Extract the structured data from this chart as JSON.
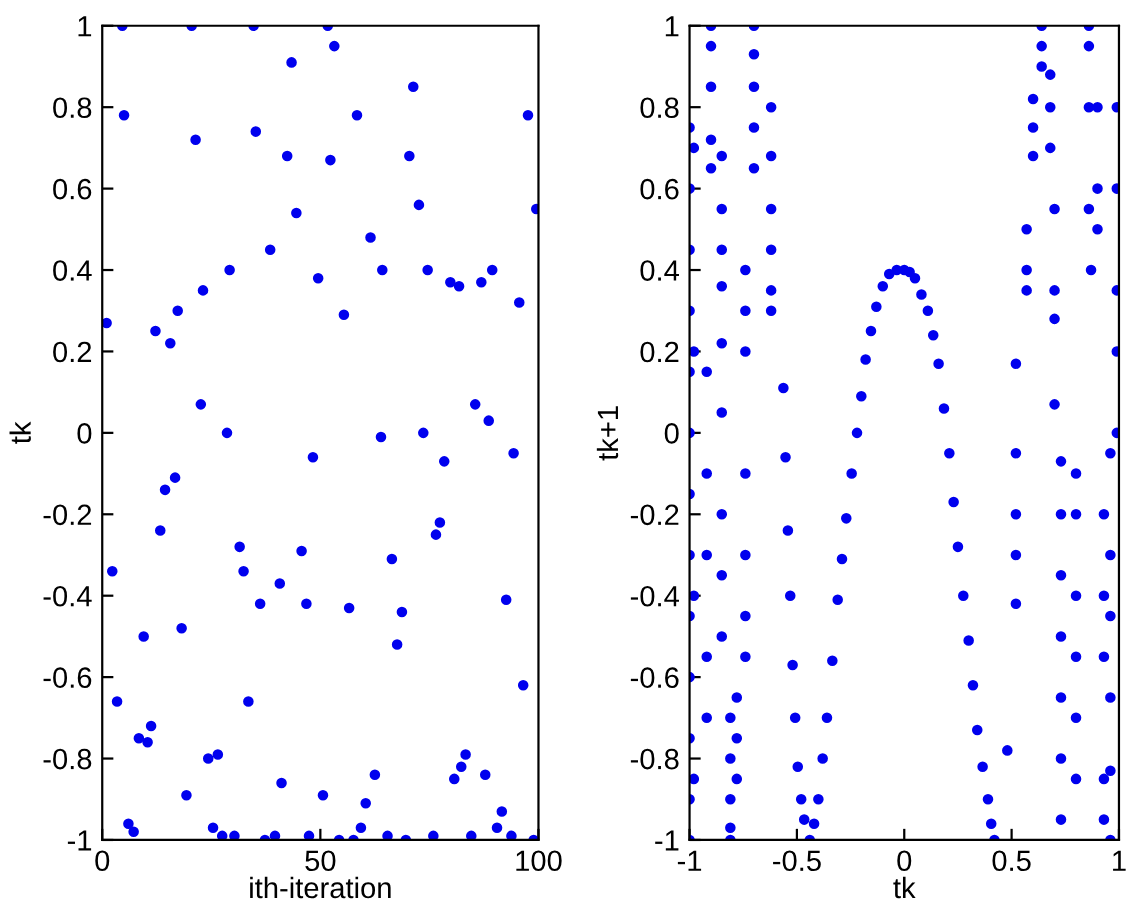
{
  "chart_data": [
    {
      "type": "scatter",
      "xlabel": "ith-iteration",
      "ylabel": "tk",
      "xlim": [
        0,
        100
      ],
      "ylim": [
        -1,
        1
      ],
      "xticks": [
        0,
        50,
        100
      ],
      "yticks": [
        -1,
        -0.8,
        -0.6,
        -0.4,
        -0.2,
        0,
        0.2,
        0.4,
        0.6,
        0.8,
        1
      ],
      "marker": "circle",
      "grid": false,
      "series": [
        {
          "color": "#0000ee",
          "x": [
            1,
            2.3,
            3.4,
            4.6,
            5,
            6,
            7.2,
            8.4,
            9.5,
            10.4,
            11.2,
            12.2,
            13.3,
            14.4,
            15.6,
            16.7,
            17.3,
            18.2,
            19.3,
            20.5,
            21.4,
            22.6,
            23.1,
            24.3,
            25.4,
            26.5,
            27.5,
            28.6,
            29.2,
            30.3,
            31.5,
            32.4,
            33.5,
            34.7,
            35.2,
            36.2,
            37.3,
            38.5,
            39.6,
            40.7,
            41.1,
            42.4,
            43.4,
            44.5,
            45.7,
            46.8,
            47.4,
            48.3,
            49.5,
            50.6,
            51.7,
            52.3,
            53.2,
            54.3,
            55.4,
            56.6,
            57.6,
            58.4,
            59.3,
            60.4,
            61.5,
            62.5,
            63.9,
            64.2,
            65.4,
            66.4,
            67.6,
            68.7,
            69.6,
            70.4,
            71.3,
            72.6,
            73.6,
            74.6,
            75.9,
            76.5,
            77.4,
            78.4,
            79.8,
            80.7,
            81.8,
            82.3,
            83.3,
            84.6,
            85.5,
            86.9,
            87.8,
            88.6,
            89.4,
            90.5,
            91.6,
            92.6,
            93.8,
            94.3,
            95.6,
            96.5,
            97.6,
            98.9,
            99.5
          ],
          "values": [
            0.27,
            -0.34,
            -0.66,
            1.0,
            0.78,
            -0.96,
            -0.98,
            -0.75,
            -0.5,
            -0.76,
            -0.72,
            0.25,
            -0.24,
            -0.14,
            0.22,
            -0.11,
            0.3,
            -0.48,
            -0.89,
            1.0,
            0.72,
            0.07,
            0.35,
            -0.8,
            -0.97,
            -0.79,
            -0.99,
            0.0,
            0.4,
            -0.99,
            -0.28,
            -0.34,
            -0.66,
            1.0,
            0.74,
            -0.42,
            -1.0,
            0.45,
            -0.99,
            -0.37,
            -0.86,
            0.68,
            0.91,
            0.54,
            -0.29,
            -0.42,
            -0.99,
            -0.06,
            0.38,
            -0.89,
            1.0,
            0.67,
            0.95,
            -1.0,
            0.29,
            -0.43,
            -1.0,
            0.78,
            -0.97,
            -0.91,
            0.48,
            -0.84,
            -0.01,
            0.4,
            -0.99,
            -0.31,
            -0.52,
            -0.44,
            -1.0,
            0.68,
            0.85,
            0.56,
            0.0,
            0.4,
            -0.99,
            -0.25,
            -0.22,
            -0.07,
            0.37,
            -0.85,
            0.36,
            -0.82,
            -0.79,
            -0.99,
            0.07,
            0.37,
            -0.84,
            0.03,
            0.4,
            -0.97,
            -0.93,
            -0.41,
            -0.99,
            -0.05,
            0.32,
            -0.62,
            0.78,
            -1.0,
            0.55
          ]
        }
      ]
    },
    {
      "type": "scatter",
      "xlabel": "tk",
      "ylabel": "tk+1",
      "xlim": [
        -1,
        1
      ],
      "ylim": [
        -1,
        1
      ],
      "xticks": [
        -1,
        -0.5,
        0,
        0.5,
        1
      ],
      "yticks": [
        -1,
        -0.8,
        -0.6,
        -0.4,
        -0.2,
        0,
        0.2,
        0.4,
        0.6,
        0.8,
        1
      ],
      "marker": "circle",
      "grid": false,
      "series": [
        {
          "color": "#0000ee",
          "x": [
            -0.553,
            -0.531,
            -0.508,
            -0.48,
            -0.42,
            -0.38,
            -0.335,
            -0.29,
            -0.245,
            -0.2,
            -0.155,
            -0.1,
            -0.035,
            0.025,
            0.08,
            0.135,
            0.185,
            0.23,
            0.275,
            0.32,
            0.365,
            0.405,
            -0.563,
            -0.542,
            -0.52,
            -0.496,
            -0.466,
            -0.44,
            -0.4,
            -0.36,
            -0.31,
            -0.27,
            -0.22,
            -0.18,
            -0.13,
            -0.07,
            0.0,
            0.05,
            0.11,
            0.16,
            0.21,
            0.25,
            0.3,
            0.34,
            0.39,
            0.42,
            0.48,
            -1.0,
            -1.0,
            -1.0,
            -1.0,
            -1.0,
            -1.0,
            -1.0,
            -1.0,
            -1.0,
            -1.0,
            -1.0,
            -1.0,
            -1.0,
            -0.98,
            -0.98,
            -0.98,
            -0.98,
            -0.92,
            -0.92,
            -0.92,
            -0.92,
            -0.92,
            -0.9,
            -0.9,
            -0.9,
            -0.9,
            -0.9,
            -0.85,
            -0.85,
            -0.85,
            -0.85,
            -0.85,
            -0.85,
            -0.85,
            -0.85,
            -0.85,
            -0.81,
            -0.81,
            -0.81,
            -0.81,
            -0.81,
            -0.78,
            -0.78,
            -0.78,
            -0.74,
            -0.74,
            -0.74,
            -0.74,
            -0.74,
            -0.74,
            -0.74,
            -0.7,
            -0.7,
            -0.7,
            -0.7,
            -0.7,
            -0.62,
            -0.62,
            -0.62,
            -0.62,
            -0.62,
            -0.62,
            0.52,
            0.52,
            0.52,
            0.52,
            0.52,
            0.57,
            0.57,
            0.57,
            0.6,
            0.6,
            0.6,
            0.64,
            0.64,
            0.64,
            0.68,
            0.68,
            0.68,
            0.7,
            0.7,
            0.7,
            0.7,
            0.73,
            0.73,
            0.73,
            0.73,
            0.73,
            0.73,
            0.73,
            0.8,
            0.8,
            0.8,
            0.8,
            0.8,
            0.8,
            0.86,
            0.86,
            0.86,
            0.86,
            0.87,
            0.9,
            0.9,
            0.9,
            0.93,
            0.93,
            0.93,
            0.93,
            0.93,
            0.96,
            0.96,
            0.96,
            0.96,
            0.96,
            0.96,
            0.99,
            0.99,
            0.99,
            0.99,
            0.99
          ],
          "values": [
            -0.06,
            -0.4,
            -0.7,
            -0.9,
            -0.96,
            -0.8,
            -0.56,
            -0.31,
            -0.1,
            0.09,
            0.25,
            0.36,
            0.4,
            0.395,
            0.34,
            0.24,
            0.06,
            -0.17,
            -0.4,
            -0.62,
            -0.82,
            -0.96,
            0.11,
            -0.24,
            -0.57,
            -0.82,
            -0.95,
            -1.0,
            -0.9,
            -0.7,
            -0.41,
            -0.21,
            0.0,
            0.18,
            0.31,
            0.39,
            0.4,
            0.38,
            0.3,
            0.17,
            -0.05,
            -0.28,
            -0.51,
            -0.73,
            -0.9,
            -1.0,
            -0.78,
            0.75,
            0.6,
            0.45,
            0.3,
            0.15,
            0.0,
            -0.15,
            -0.3,
            -0.45,
            -0.6,
            -0.75,
            -0.9,
            -1.0,
            0.7,
            0.2,
            -0.4,
            -0.85,
            0.15,
            -0.1,
            -0.3,
            -0.55,
            -0.7,
            1.0,
            0.95,
            0.85,
            0.72,
            0.65,
            0.68,
            0.55,
            0.45,
            0.36,
            0.22,
            0.05,
            -0.2,
            -0.35,
            -0.5,
            -0.7,
            -0.8,
            -0.9,
            -0.97,
            -1.0,
            -0.65,
            -0.75,
            -0.85,
            0.4,
            0.3,
            0.2,
            -0.1,
            -0.3,
            -0.45,
            -0.55,
            1.0,
            0.93,
            0.85,
            0.75,
            0.65,
            0.8,
            0.68,
            0.55,
            0.45,
            0.35,
            0.3,
            0.17,
            -0.05,
            -0.2,
            -0.3,
            -0.42,
            0.5,
            0.4,
            0.35,
            0.82,
            0.75,
            0.68,
            1.0,
            0.95,
            0.9,
            0.88,
            0.8,
            0.7,
            0.55,
            0.35,
            0.28,
            0.07,
            -0.07,
            -0.2,
            -0.35,
            -0.5,
            -0.65,
            -0.8,
            -0.95,
            -0.1,
            -0.2,
            -0.4,
            -0.55,
            -0.7,
            -0.85,
            1.0,
            0.95,
            0.8,
            0.55,
            0.4,
            0.8,
            0.6,
            0.5,
            -0.2,
            -0.4,
            -0.55,
            -0.85,
            -0.95,
            -0.05,
            -0.3,
            -0.45,
            -0.65,
            -0.83,
            -1.0,
            0.8,
            0.6,
            0.35,
            0.2,
            0.0
          ]
        }
      ]
    }
  ]
}
